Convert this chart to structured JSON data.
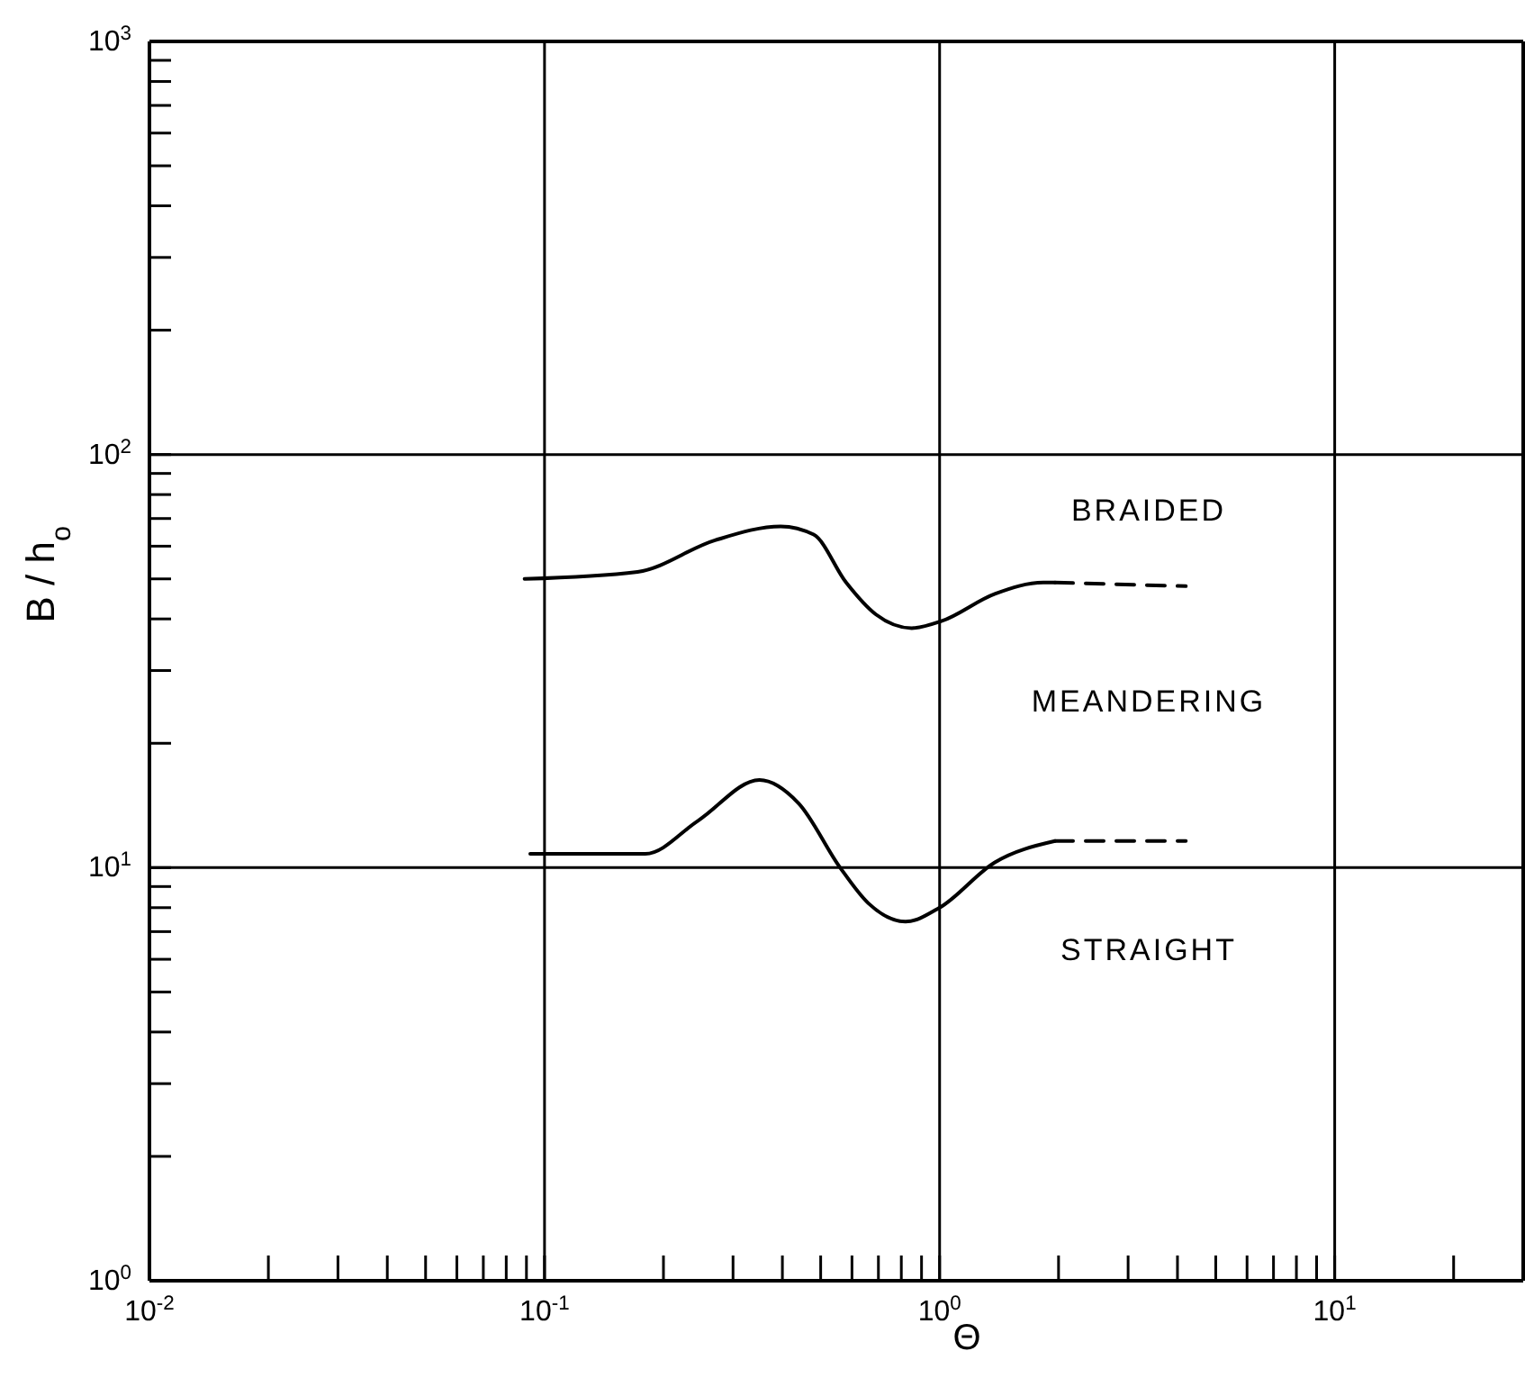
{
  "chart_data": {
    "type": "line",
    "xlabel": "Θ",
    "ylabel": "B / h$_{o}$",
    "log": "xy",
    "grid": true,
    "marker": "none",
    "xlim": [
      0.01,
      30
    ],
    "ylim": [
      1,
      1000
    ],
    "xticks": [
      {
        "value": 0.01,
        "label": "10$^{-2}$"
      },
      {
        "value": 0.02,
        "label": null
      },
      {
        "value": 0.03,
        "label": null
      },
      {
        "value": 0.04,
        "label": null
      },
      {
        "value": 0.05,
        "label": null
      },
      {
        "value": 0.06,
        "label": null
      },
      {
        "value": 0.07,
        "label": null
      },
      {
        "value": 0.08,
        "label": null
      },
      {
        "value": 0.09,
        "label": null
      },
      {
        "value": 0.1,
        "label": "10$^{-1}$"
      },
      {
        "value": 0.2,
        "label": null
      },
      {
        "value": 0.3,
        "label": null
      },
      {
        "value": 0.4,
        "label": null
      },
      {
        "value": 0.5,
        "label": null
      },
      {
        "value": 0.6,
        "label": null
      },
      {
        "value": 0.7,
        "label": null
      },
      {
        "value": 0.8,
        "label": null
      },
      {
        "value": 0.9,
        "label": null
      },
      {
        "value": 1,
        "label": "10$^{0}$"
      },
      {
        "value": 2,
        "label": null
      },
      {
        "value": 3,
        "label": null
      },
      {
        "value": 4,
        "label": null
      },
      {
        "value": 5,
        "label": null
      },
      {
        "value": 6,
        "label": null
      },
      {
        "value": 7,
        "label": null
      },
      {
        "value": 8,
        "label": null
      },
      {
        "value": 9,
        "label": null
      },
      {
        "value": 10,
        "label": "10$^{1}$"
      },
      {
        "value": 20,
        "label": null
      }
    ],
    "yticks": [
      {
        "value": 1,
        "label": "10$^{0}$"
      },
      {
        "value": 2,
        "label": null
      },
      {
        "value": 3,
        "label": null
      },
      {
        "value": 4,
        "label": null
      },
      {
        "value": 5,
        "label": null
      },
      {
        "value": 6,
        "label": null
      },
      {
        "value": 7,
        "label": null
      },
      {
        "value": 8,
        "label": null
      },
      {
        "value": 9,
        "label": null
      },
      {
        "value": 10,
        "label": "10$^{1}$"
      },
      {
        "value": 20,
        "label": null
      },
      {
        "value": 30,
        "label": null
      },
      {
        "value": 40,
        "label": null
      },
      {
        "value": 50,
        "label": null
      },
      {
        "value": 60,
        "label": null
      },
      {
        "value": 70,
        "label": null
      },
      {
        "value": 80,
        "label": null
      },
      {
        "value": 90,
        "label": null
      },
      {
        "value": 100,
        "label": "10$^{2}$"
      },
      {
        "value": 200,
        "label": null
      },
      {
        "value": 300,
        "label": null
      },
      {
        "value": 400,
        "label": null
      },
      {
        "value": 500,
        "label": null
      },
      {
        "value": 600,
        "label": null
      },
      {
        "value": 700,
        "label": null
      },
      {
        "value": 800,
        "label": null
      },
      {
        "value": 900,
        "label": null
      },
      {
        "value": 1000,
        "label": "10$^{3}$"
      }
    ],
    "series": [
      {
        "color": "#000000",
        "line_style": "solid",
        "x": [
          0.089,
          0.172,
          0.27,
          0.396,
          0.48,
          0.58,
          0.69,
          0.85,
          1.01,
          1.38,
          1.83,
          1.96
        ],
        "values": [
          50,
          52,
          62,
          67,
          64,
          49,
          41,
          38,
          39.5,
          46,
          49,
          49
        ]
      },
      {
        "color": "#000000",
        "line_style": "dashed",
        "x": [
          1.96,
          4.2
        ],
        "values": [
          49,
          48
        ]
      },
      {
        "color": "#000000",
        "line_style": "solid",
        "x": [
          0.092,
          0.18,
          0.245,
          0.35,
          0.44,
          0.56,
          0.66,
          0.82,
          1.0,
          1.38,
          1.96
        ],
        "values": [
          10.8,
          10.8,
          13,
          16.3,
          14.3,
          10,
          8.2,
          7.4,
          8,
          10.3,
          11.6
        ]
      },
      {
        "color": "#000000",
        "line_style": "dashed",
        "x": [
          1.96,
          4.2
        ],
        "values": [
          11.6,
          11.6
        ]
      }
    ],
    "annotations": [
      "BRAIDED",
      "MEANDERING",
      "STRAIGHT"
    ]
  }
}
